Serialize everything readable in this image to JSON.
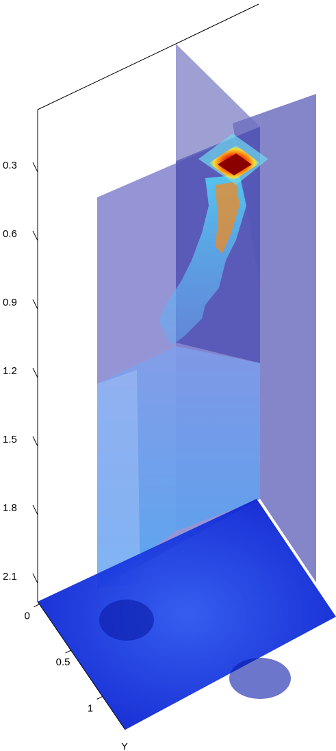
{
  "chart_data": {
    "type": "heatmap",
    "subtype": "3d-volume-slices",
    "title": "",
    "z_axis": {
      "ticks": [
        0.3,
        0.6,
        0.9,
        1.2,
        1.5,
        1.8,
        2.1
      ],
      "tick_labels": [
        "0.3",
        "0.6",
        "0.9",
        "1.2",
        "1.5",
        "1.8",
        "2.1"
      ],
      "direction": "increasing-downward"
    },
    "y_axis": {
      "ticks": [
        0,
        0.5,
        1
      ],
      "tick_labels": [
        "0",
        "0.5",
        "1"
      ],
      "label": "Y"
    },
    "slices": [
      {
        "name": "vertical-slice-front",
        "orientation": "vertical"
      },
      {
        "name": "vertical-slice-back",
        "orientation": "vertical"
      },
      {
        "name": "horizontal-slice-bottom",
        "orientation": "horizontal",
        "depth": 2.3
      }
    ],
    "hotspot": {
      "depth": 0.3,
      "color": "#b00000"
    },
    "plume_profile": [
      {
        "depth": 0.25,
        "intensity": 1.0
      },
      {
        "depth": 0.3,
        "intensity": 0.95
      },
      {
        "depth": 0.45,
        "intensity": 0.7
      },
      {
        "depth": 0.6,
        "intensity": 0.55
      },
      {
        "depth": 0.8,
        "intensity": 0.4
      },
      {
        "depth": 0.95,
        "intensity": 0.35
      },
      {
        "depth": 1.2,
        "intensity": 0.3
      },
      {
        "depth": 1.5,
        "intensity": 0.25
      },
      {
        "depth": 1.8,
        "intensity": 0.22
      },
      {
        "depth": 2.1,
        "intensity": 0.2
      }
    ],
    "colormap": "jet",
    "colors": {
      "slice_fill": "#6f71c0",
      "floor_fill": "#1e3de0",
      "plume_cyan": "#55c8f0",
      "hot_red": "#d01010",
      "hot_yellow": "#f0e040"
    }
  }
}
